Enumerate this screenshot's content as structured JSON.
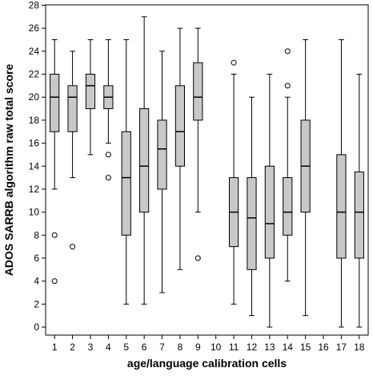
{
  "chart_data": {
    "type": "box",
    "xlabel": "age/language calibration cells",
    "ylabel": "ADOS SARRB algorithm raw total score",
    "ylim": [
      0,
      28
    ],
    "yticks": [
      0,
      2,
      4,
      6,
      8,
      10,
      12,
      14,
      16,
      18,
      20,
      22,
      24,
      26,
      28
    ],
    "categories": [
      "1",
      "2",
      "3",
      "4",
      "5",
      "6",
      "7",
      "8",
      "9",
      "10",
      "11",
      "12",
      "13",
      "14",
      "15",
      "16",
      "17",
      "18"
    ],
    "grid": false,
    "box_fill": "#c8c8c8",
    "boxes": [
      {
        "category": "1",
        "min": 12,
        "q1": 17,
        "median": 20,
        "q3": 22,
        "max": 25,
        "outliers": [
          8,
          4
        ]
      },
      {
        "category": "2",
        "min": 13,
        "q1": 17,
        "median": 20,
        "q3": 21,
        "max": 24,
        "outliers": [
          7
        ]
      },
      {
        "category": "3",
        "min": 15,
        "q1": 19,
        "median": 21,
        "q3": 22,
        "max": 25,
        "outliers": []
      },
      {
        "category": "4",
        "min": 16,
        "q1": 19,
        "median": 20,
        "q3": 21,
        "max": 25,
        "outliers": [
          15,
          13
        ]
      },
      {
        "category": "5",
        "min": 2,
        "q1": 8,
        "median": 13,
        "q3": 17,
        "max": 25,
        "outliers": []
      },
      {
        "category": "6",
        "min": 2,
        "q1": 10,
        "median": 14,
        "q3": 19,
        "max": 27,
        "outliers": []
      },
      {
        "category": "7",
        "min": 3,
        "q1": 12,
        "median": 15.5,
        "q3": 18,
        "max": 24,
        "outliers": []
      },
      {
        "category": "8",
        "min": 5,
        "q1": 14,
        "median": 17,
        "q3": 21,
        "max": 26,
        "outliers": []
      },
      {
        "category": "9",
        "min": 10,
        "q1": 18,
        "median": 20,
        "q3": 23,
        "max": 26,
        "outliers": [
          6
        ]
      },
      {
        "category": "11",
        "min": 2,
        "q1": 7,
        "median": 10,
        "q3": 13,
        "max": 22,
        "outliers": [
          23
        ]
      },
      {
        "category": "12",
        "min": 1,
        "q1": 5,
        "median": 9.5,
        "q3": 13,
        "max": 20,
        "outliers": []
      },
      {
        "category": "13",
        "min": 0,
        "q1": 6,
        "median": 9,
        "q3": 14,
        "max": 22,
        "outliers": []
      },
      {
        "category": "14",
        "min": 4,
        "q1": 8,
        "median": 10,
        "q3": 13,
        "max": 20,
        "outliers": [
          24,
          21
        ]
      },
      {
        "category": "15",
        "min": 1,
        "q1": 10,
        "median": 14,
        "q3": 18,
        "max": 25,
        "outliers": []
      },
      {
        "category": "17",
        "min": 0,
        "q1": 6,
        "median": 10,
        "q3": 15,
        "max": 25,
        "outliers": []
      },
      {
        "category": "18",
        "min": 0,
        "q1": 6,
        "median": 10,
        "q3": 13.5,
        "max": 22,
        "outliers": []
      }
    ]
  }
}
